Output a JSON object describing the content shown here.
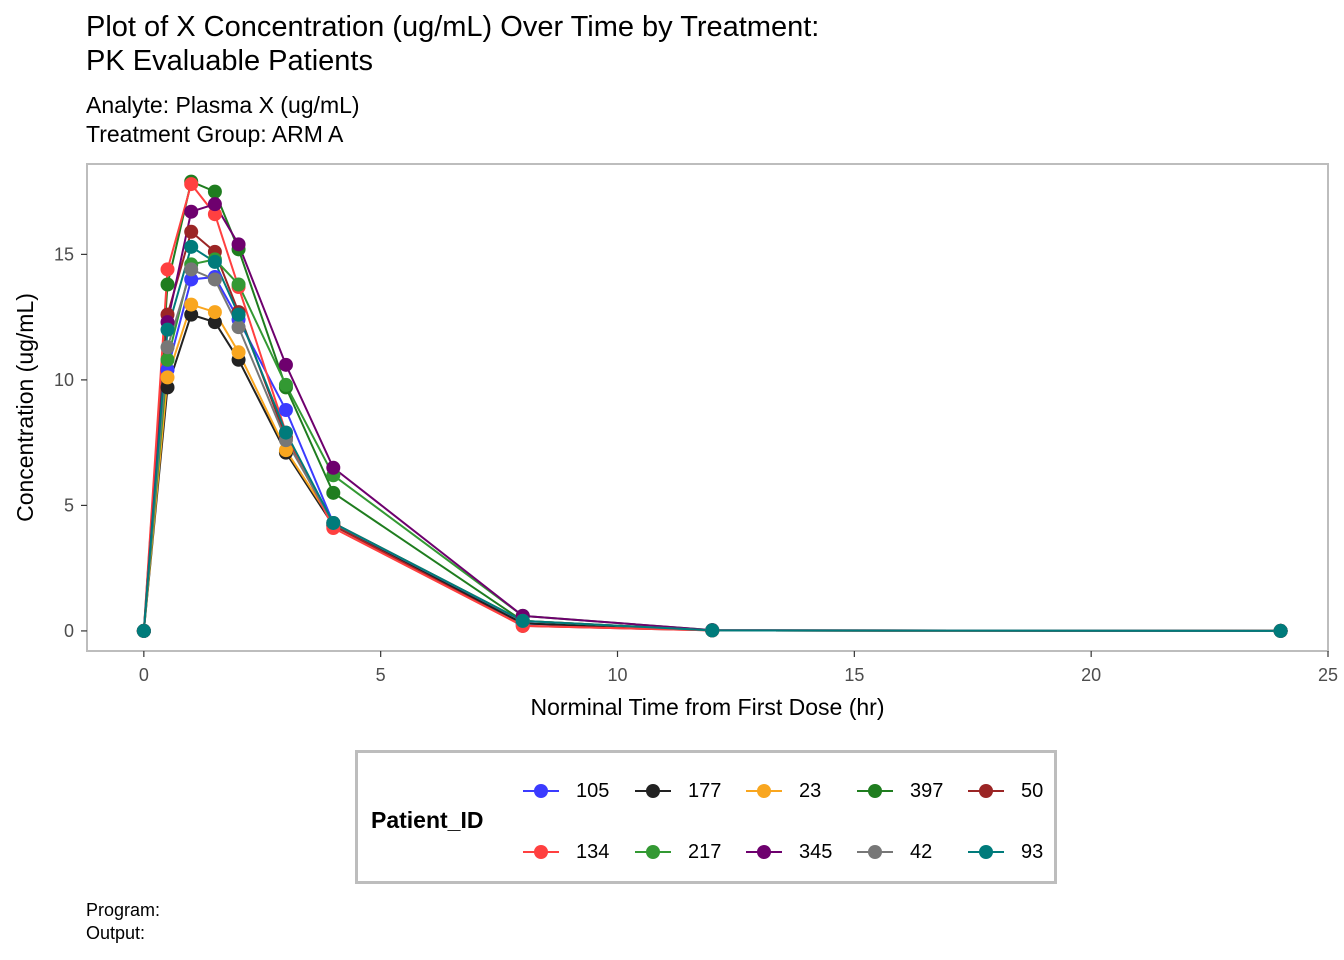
{
  "title_lines": [
    "Plot of X Concentration (ug/mL) Over Time by Treatment:",
    "PK Evaluable Patients"
  ],
  "subtitle_lines": [
    "Analyte: Plasma X (ug/mL)",
    "Treatment Group: ARM A"
  ],
  "caption_lines": [
    "Program:",
    "Output:"
  ],
  "legend_title": "Patient_ID",
  "chart_data": {
    "type": "line",
    "xlabel": "Norminal Time from First Dose (hr)",
    "ylabel": "Concentration (ug/mL)",
    "xlim": [
      -1.2,
      25
    ],
    "ylim": [
      -0.8,
      18.6
    ],
    "xticks": [
      0,
      5,
      10,
      15,
      20,
      25
    ],
    "yticks": [
      0,
      5,
      10,
      15
    ],
    "grid": false,
    "legend_position": "bottom",
    "x": [
      0,
      0.5,
      1,
      1.5,
      2,
      3,
      4,
      8,
      12,
      24
    ],
    "series": [
      {
        "name": "105",
        "color": "#3b3bff",
        "values": [
          0,
          10.4,
          14.0,
          14.1,
          12.4,
          8.8,
          4.3,
          0.3,
          0.02,
          0
        ]
      },
      {
        "name": "177",
        "color": "#222222",
        "values": [
          0,
          9.7,
          12.6,
          12.3,
          10.8,
          7.1,
          4.2,
          0.3,
          0.02,
          0
        ]
      },
      {
        "name": "23",
        "color": "#f9a61f",
        "values": [
          0,
          10.1,
          13.0,
          12.7,
          11.1,
          7.2,
          4.3,
          0.4,
          0.02,
          0
        ]
      },
      {
        "name": "397",
        "color": "#1f7d1f",
        "values": [
          0,
          13.8,
          17.9,
          17.5,
          15.2,
          9.7,
          5.5,
          0.4,
          0.02,
          0
        ]
      },
      {
        "name": "50",
        "color": "#9b2525",
        "values": [
          0,
          12.6,
          15.9,
          15.1,
          12.7,
          7.7,
          4.2,
          0.2,
          0.02,
          0
        ]
      },
      {
        "name": "134",
        "color": "#ff4040",
        "values": [
          0,
          14.4,
          17.8,
          16.6,
          13.7,
          7.9,
          4.1,
          0.2,
          0.02,
          0
        ]
      },
      {
        "name": "217",
        "color": "#339933",
        "values": [
          0,
          10.8,
          14.6,
          14.8,
          13.8,
          9.8,
          6.2,
          0.6,
          0.03,
          0
        ]
      },
      {
        "name": "345",
        "color": "#6e006e",
        "values": [
          0,
          12.3,
          16.7,
          17.0,
          15.4,
          10.6,
          6.5,
          0.6,
          0.03,
          0
        ]
      },
      {
        "name": "42",
        "color": "#777777",
        "values": [
          0,
          11.3,
          14.4,
          14.0,
          12.1,
          7.6,
          4.3,
          0.4,
          0.02,
          0
        ]
      },
      {
        "name": "93",
        "color": "#007b7b",
        "values": [
          0,
          12.0,
          15.3,
          14.7,
          12.6,
          7.9,
          4.3,
          0.4,
          0.02,
          0
        ]
      }
    ]
  }
}
